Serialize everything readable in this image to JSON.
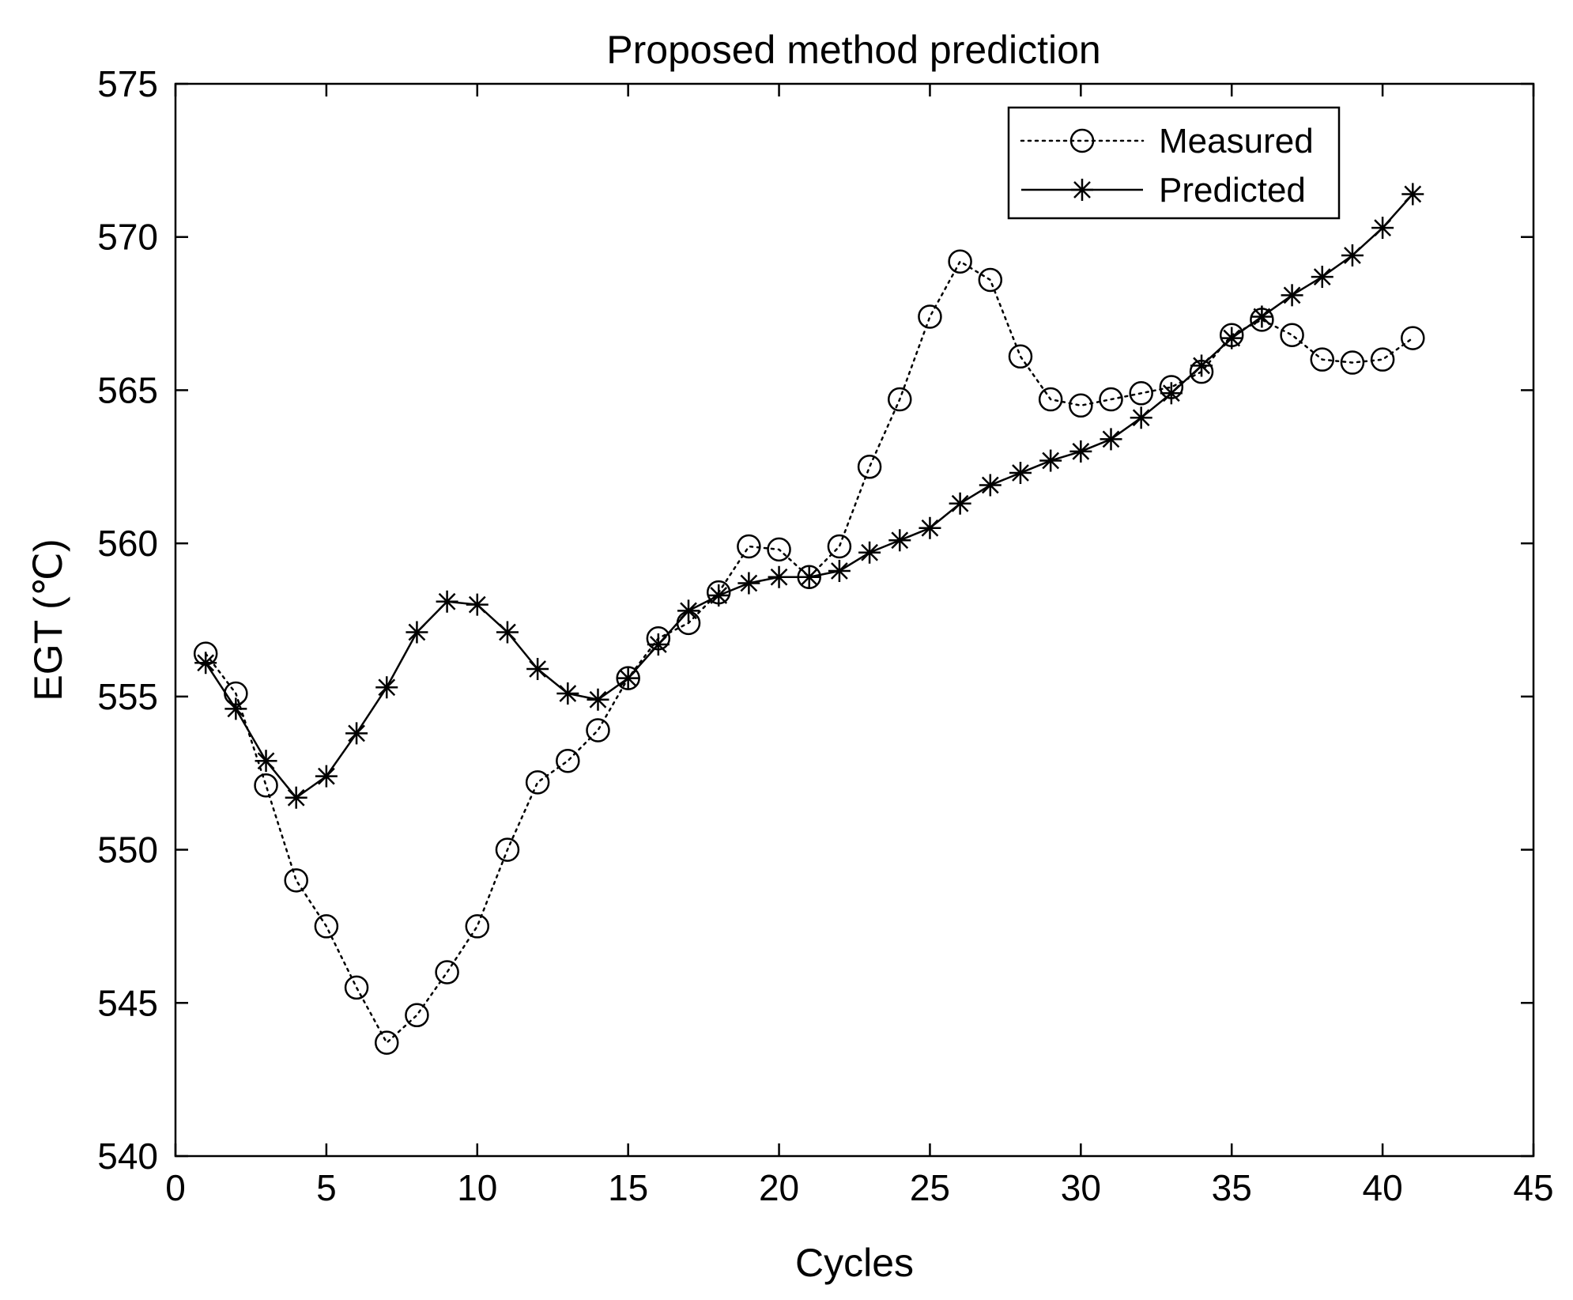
{
  "chart_data": {
    "type": "line",
    "title": "Proposed method prediction",
    "xlabel": "Cycles",
    "ylabel": "EGT (℃)",
    "xlim": [
      0,
      45
    ],
    "ylim": [
      540,
      575
    ],
    "xticks": [
      0,
      5,
      10,
      15,
      20,
      25,
      30,
      35,
      40,
      45
    ],
    "yticks": [
      540,
      545,
      550,
      555,
      560,
      565,
      570,
      575
    ],
    "xtick_labels": [
      "0",
      "5",
      "10",
      "15",
      "20",
      "25",
      "30",
      "35",
      "40",
      "45"
    ],
    "ytick_labels": [
      "540",
      "545",
      "550",
      "555",
      "560",
      "565",
      "570",
      "575"
    ],
    "grid": false,
    "legend_position": "top-right",
    "x": [
      1,
      2,
      3,
      4,
      5,
      6,
      7,
      8,
      9,
      10,
      11,
      12,
      13,
      14,
      15,
      16,
      17,
      18,
      19,
      20,
      21,
      22,
      23,
      24,
      25,
      26,
      27,
      28,
      29,
      30,
      31,
      32,
      33,
      34,
      35,
      36,
      37,
      38,
      39,
      40,
      41
    ],
    "series": [
      {
        "name": "Measured",
        "line_style": "dotted",
        "marker": "circle",
        "values": [
          556.4,
          555.1,
          552.1,
          549.0,
          547.5,
          545.5,
          543.7,
          544.6,
          546.0,
          547.5,
          550.0,
          552.2,
          552.9,
          553.9,
          555.6,
          556.9,
          557.4,
          558.4,
          559.9,
          559.8,
          558.9,
          559.9,
          562.5,
          564.7,
          567.4,
          569.2,
          568.6,
          566.1,
          564.7,
          564.5,
          564.7,
          564.9,
          565.1,
          565.6,
          566.8,
          567.3,
          566.8,
          566.0,
          565.9,
          566.0,
          566.7
        ]
      },
      {
        "name": "Predicted",
        "line_style": "solid",
        "marker": "asterisk",
        "values": [
          556.1,
          554.6,
          552.9,
          551.7,
          552.4,
          553.8,
          555.3,
          557.1,
          558.1,
          558.0,
          557.1,
          555.9,
          555.1,
          554.9,
          555.6,
          556.7,
          557.8,
          558.3,
          558.7,
          558.9,
          558.9,
          559.1,
          559.7,
          560.1,
          560.5,
          561.3,
          561.9,
          562.3,
          562.7,
          563.0,
          563.4,
          564.1,
          564.9,
          565.8,
          566.7,
          567.4,
          568.1,
          568.7,
          569.4,
          570.3,
          571.4
        ]
      }
    ]
  },
  "colors": {
    "axis": "#000000",
    "series": "#000000",
    "background": "#ffffff"
  }
}
